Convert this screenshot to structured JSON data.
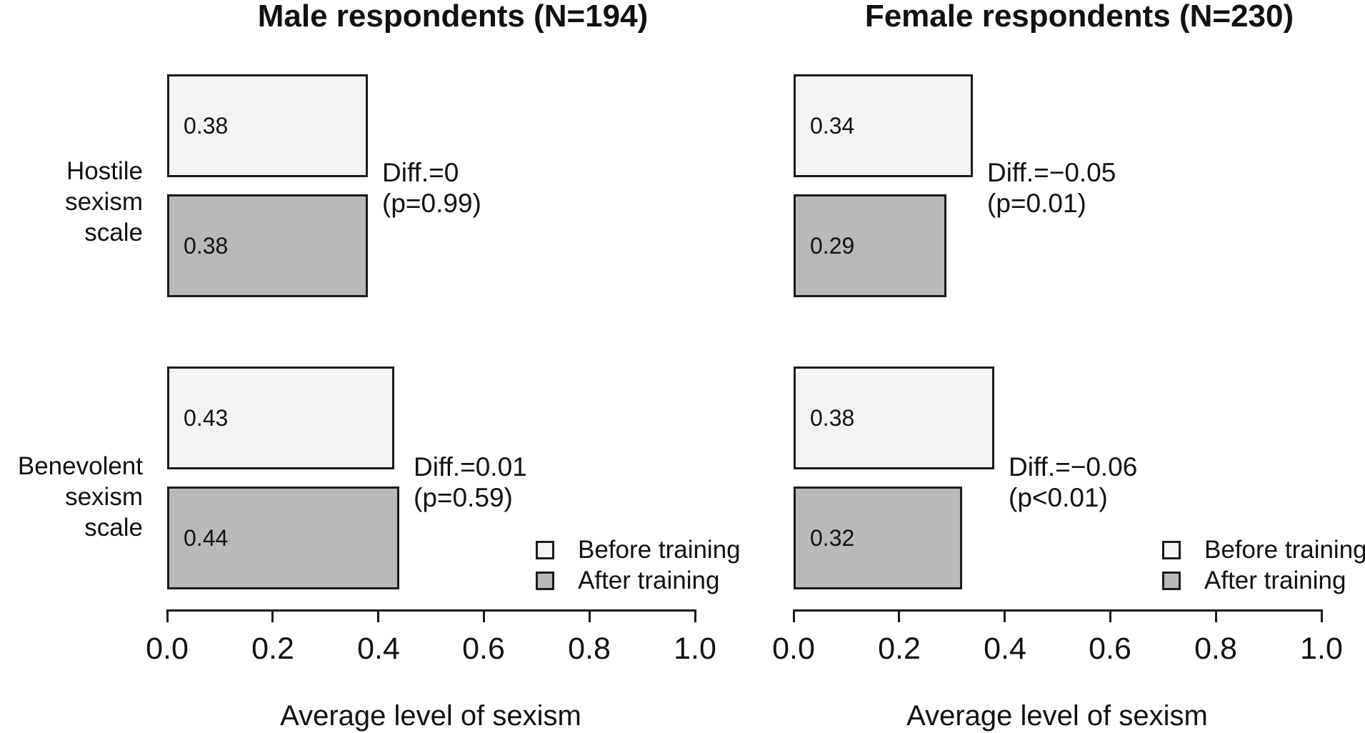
{
  "figure": {
    "background": "#ffffff",
    "ink": "#1a1a1a",
    "before_color": "#f1f3f5",
    "after_color": "#b8bab9"
  },
  "legend": {
    "before": "Before training",
    "after": "After training"
  },
  "chart_data": [
    {
      "type": "bar",
      "orientation": "horizontal",
      "title": "Male respondents (N=194)",
      "xlabel": "Average level of sexism",
      "xlim": [
        0.0,
        1.0
      ],
      "grid": false,
      "legend_position": "bottom-right",
      "ticks": [
        "0.0",
        "0.2",
        "0.4",
        "0.6",
        "0.8",
        "1.0"
      ],
      "series_names": [
        "Before training",
        "After training"
      ],
      "groups": [
        {
          "category": "Hostile\nsexism scale",
          "values": {
            "before": 0.38,
            "after": 0.38
          },
          "labels": {
            "before": "0.38",
            "after": "0.38"
          },
          "diff": "Diff.=0",
          "p": "(p=0.99)"
        },
        {
          "category": "Benevolent\nsexism scale",
          "values": {
            "before": 0.43,
            "after": 0.44
          },
          "labels": {
            "before": "0.43",
            "after": "0.44"
          },
          "diff": "Diff.=0.01",
          "p": "(p=0.59)"
        }
      ]
    },
    {
      "type": "bar",
      "orientation": "horizontal",
      "title": "Female respondents (N=230)",
      "xlabel": "Average level of sexism",
      "xlim": [
        0.0,
        1.0
      ],
      "grid": false,
      "legend_position": "bottom-right",
      "ticks": [
        "0.0",
        "0.2",
        "0.4",
        "0.6",
        "0.8",
        "1.0"
      ],
      "series_names": [
        "Before training",
        "After training"
      ],
      "groups": [
        {
          "values": {
            "before": 0.34,
            "after": 0.29
          },
          "labels": {
            "before": "0.34",
            "after": "0.29"
          },
          "diff": "Diff.=−0.05",
          "p": "(p=0.01)"
        },
        {
          "values": {
            "before": 0.38,
            "after": 0.32
          },
          "labels": {
            "before": "0.38",
            "after": "0.32"
          },
          "diff": "Diff.=−0.06",
          "p": "(p<0.01)"
        }
      ]
    }
  ]
}
